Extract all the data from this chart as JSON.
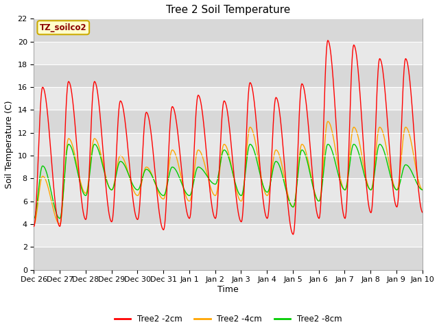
{
  "title": "Tree 2 Soil Temperature",
  "xlabel": "Time",
  "ylabel": "Soil Temperature (C)",
  "ylim": [
    0,
    22
  ],
  "yticks": [
    0,
    2,
    4,
    6,
    8,
    10,
    12,
    14,
    16,
    18,
    20,
    22
  ],
  "x_tick_labels": [
    "Dec 26",
    "Dec 27",
    "Dec 28",
    "Dec 29",
    "Dec 30",
    "Dec 31",
    "Jan 1",
    "Jan 2",
    "Jan 3",
    "Jan 4",
    "Jan 5",
    "Jan 6",
    "Jan 7",
    "Jan 8",
    "Jan 9",
    "Jan 10"
  ],
  "legend_label": "TZ_soilco2",
  "series_labels": [
    "Tree2 -2cm",
    "Tree2 -4cm",
    "Tree2 -8cm"
  ],
  "series_colors": [
    "#ff0000",
    "#ffa500",
    "#00cc00"
  ],
  "background_color": "#ffffff",
  "plot_bg_color": "#e8e8e8",
  "title_fontsize": 11,
  "axis_fontsize": 9,
  "tick_fontsize": 8,
  "n_days": 15,
  "red_day_peaks": [
    16.0,
    16.5,
    16.5,
    14.8,
    13.8,
    14.3,
    15.3,
    14.8,
    16.4,
    15.1,
    16.3,
    20.1,
    19.7,
    18.5,
    18.5
  ],
  "red_night_lows": [
    3.8,
    4.4,
    4.2,
    4.4,
    3.5,
    4.5,
    4.5,
    4.2,
    4.5,
    3.1,
    4.5,
    4.5,
    5.0,
    5.5,
    5.0
  ],
  "orange_day_peaks": [
    8.2,
    11.5,
    11.5,
    10.0,
    9.0,
    10.5,
    10.5,
    11.0,
    12.5,
    10.5,
    11.0,
    13.0,
    12.5,
    12.5,
    12.5
  ],
  "orange_night_lows": [
    4.0,
    6.7,
    7.0,
    6.5,
    6.2,
    6.0,
    6.5,
    6.0,
    6.5,
    5.5,
    6.0,
    7.0,
    7.0,
    7.0,
    7.0
  ],
  "green_day_peaks": [
    9.1,
    11.0,
    11.0,
    9.5,
    8.8,
    9.0,
    9.0,
    10.5,
    11.0,
    9.5,
    10.5,
    11.0,
    11.0,
    11.0,
    9.2
  ],
  "green_night_lows": [
    4.5,
    6.5,
    7.0,
    7.0,
    6.5,
    6.5,
    7.5,
    6.5,
    6.8,
    5.5,
    6.0,
    7.0,
    7.0,
    7.0,
    7.0
  ],
  "peak_phase": 0.35,
  "pts_per_day": 48
}
